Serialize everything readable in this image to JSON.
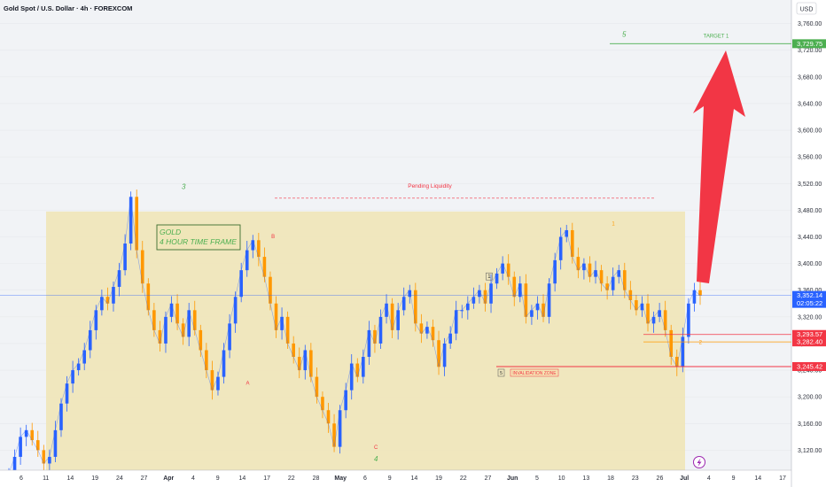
{
  "header": {
    "symbol_title": "Gold Spot / U.S. Dollar · 4h · FOREXCOM"
  },
  "price_axis": {
    "currency": "USD"
  },
  "colors": {
    "background": "#f1f3f6",
    "zone": "#efe6b8",
    "bull": "#2962ff",
    "bear": "#ff9800",
    "green": "#4caf50",
    "red": "#f23645",
    "arrow": "#f23645",
    "current": "#2962ff"
  },
  "chart_data": {
    "type": "line",
    "ylim": [
      3090,
      3790
    ],
    "yticks": [
      3120,
      3160,
      3200,
      3240,
      3280,
      3320,
      3360,
      3400,
      3440,
      3480,
      3520,
      3560,
      3600,
      3640,
      3680,
      3720,
      3760
    ],
    "ytick_labels": [
      "3,120.00",
      "3,160.00",
      "3,200.00",
      "3,240.00",
      "3,280.00",
      "3,320.00",
      "3,360.00",
      "3,400.00",
      "3,440.00",
      "3,480.00",
      "3,520.00",
      "3,560.00",
      "3,600.00",
      "3,640.00",
      "3,680.00",
      "3,720.00",
      "3,760.00"
    ],
    "xtick_labels": [
      "6",
      "11",
      "14",
      "19",
      "24",
      "27",
      "Apr",
      "4",
      "9",
      "14",
      "17",
      "22",
      "28",
      "May",
      "6",
      "9",
      "14",
      "19",
      "22",
      "27",
      "Jun",
      "5",
      "10",
      "13",
      "18",
      "23",
      "26",
      "Jul",
      "4",
      "9",
      "14",
      "17"
    ],
    "series": [
      {
        "values": [
          3085,
          3110,
          3140,
          3150,
          3135,
          3120,
          3100,
          3110,
          3150,
          3190,
          3220,
          3240,
          3250,
          3270,
          3300,
          3330,
          3350,
          3340,
          3365,
          3390,
          3430,
          3500,
          3420,
          3370,
          3330,
          3300,
          3280,
          3320,
          3340,
          3310,
          3290,
          3330,
          3300,
          3270,
          3240,
          3210,
          3230,
          3270,
          3310,
          3350,
          3390,
          3420,
          3435,
          3410,
          3380,
          3340,
          3300,
          3320,
          3280,
          3260,
          3240,
          3270,
          3230,
          3200,
          3180,
          3160,
          3125,
          3180,
          3210,
          3250,
          3230,
          3260,
          3300,
          3280,
          3320,
          3340,
          3300,
          3330,
          3350,
          3360,
          3310,
          3295,
          3305,
          3285,
          3245,
          3280,
          3295,
          3330,
          3330,
          3340,
          3350,
          3360,
          3340,
          3370,
          3385,
          3400,
          3380,
          3350,
          3370,
          3320,
          3330,
          3340,
          3320,
          3370,
          3405,
          3440,
          3450,
          3410,
          3390,
          3400,
          3380,
          3390,
          3370,
          3360,
          3380,
          3390,
          3360,
          3345,
          3330,
          3340,
          3310,
          3320,
          3330,
          3300,
          3260,
          3245,
          3290,
          3340,
          3360,
          3352
        ]
      }
    ],
    "annotations": {
      "info_box": {
        "line1": "GOLD",
        "line2": "4 HOUR TIME FRAME"
      },
      "pending_liquidity": {
        "label": "Pending Liquidity",
        "level": 3498
      },
      "target": {
        "label": "TARGET 1",
        "wave": "5",
        "level": 3729.75
      },
      "invalidation": {
        "label": "INVALIDATION ZONE",
        "wave": "5",
        "level": 3245.42
      },
      "zone": {
        "top": 3478,
        "bottom": 3090
      },
      "waves": [
        {
          "label": "3",
          "color": "green",
          "x": 0.232,
          "y": 3512
        },
        {
          "label": "B",
          "color": "red",
          "x": 0.345,
          "y": 3438
        },
        {
          "label": "A",
          "color": "red",
          "x": 0.313,
          "y": 3218
        },
        {
          "label": "C",
          "color": "red",
          "x": 0.475,
          "y": 3122
        },
        {
          "label": "4",
          "color": "green",
          "x": 0.475,
          "y": 3103
        },
        {
          "label": "1",
          "color": "box",
          "x": 0.618,
          "y": 3378
        },
        {
          "label": "1",
          "color": "orange",
          "x": 0.775,
          "y": 3457
        },
        {
          "label": "2",
          "color": "orange",
          "x": 0.885,
          "y": 3279
        }
      ]
    },
    "price_labels": [
      {
        "value": 3729.75,
        "text": "3,729.75",
        "color": "green"
      },
      {
        "value": 3352.14,
        "text": "3,352.14",
        "sub": "02:05:22",
        "color": "current"
      },
      {
        "value": 3293.57,
        "text": "3,293.57",
        "color": "red"
      },
      {
        "value": 3282.4,
        "text": "3,282.40",
        "color": "red"
      },
      {
        "value": 3245.42,
        "text": "3,245.42",
        "color": "red"
      }
    ],
    "current_price": 3352.14
  }
}
